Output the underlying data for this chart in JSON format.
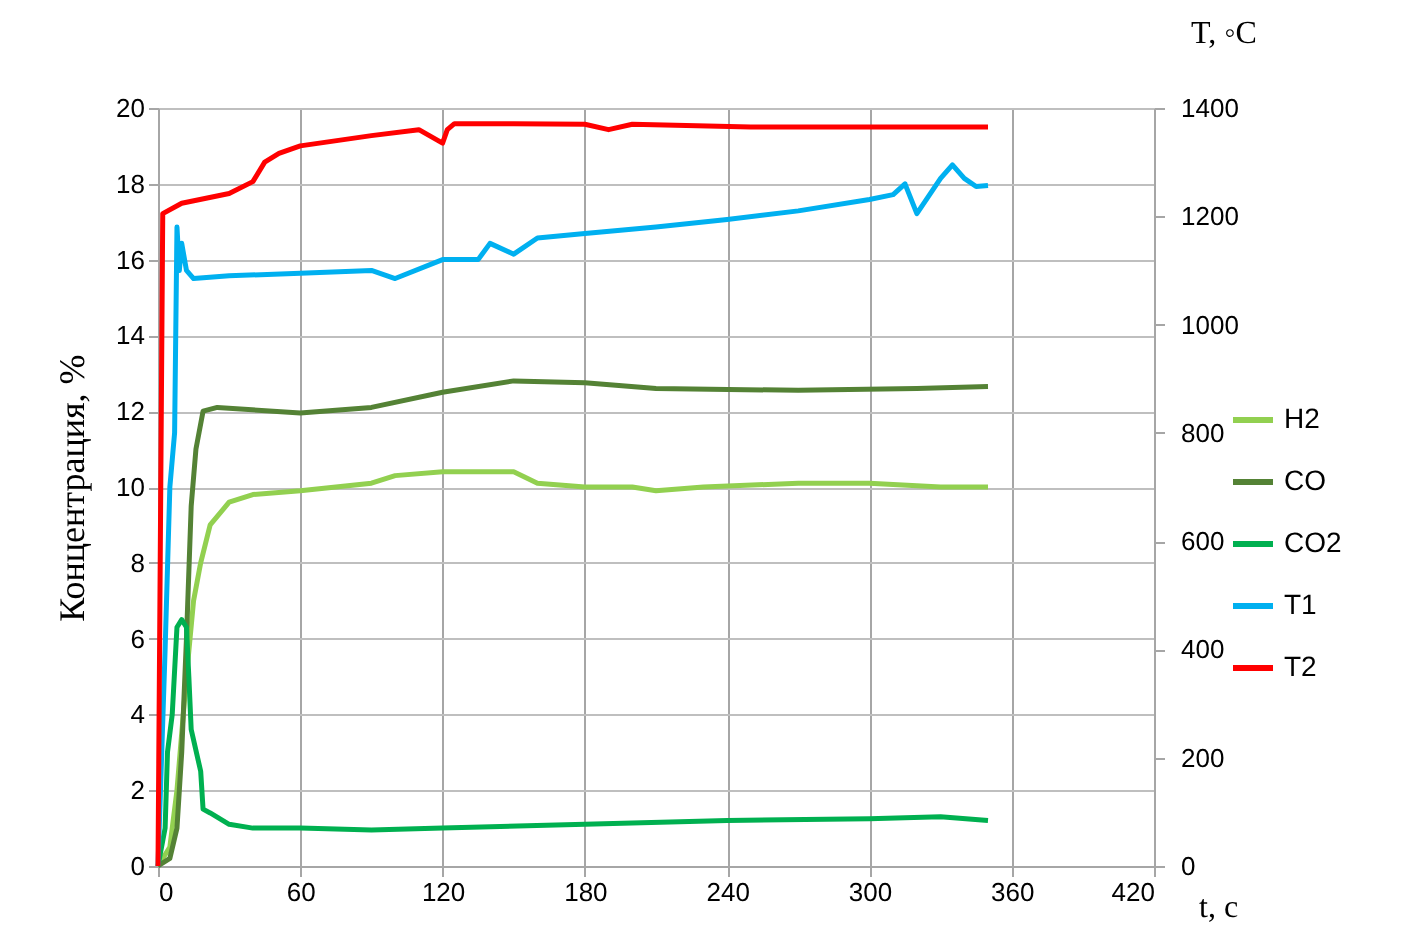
{
  "chart_data": {
    "type": "line",
    "xlabel": "t, c",
    "ylabel": "Концентрация, %",
    "y2label": "T, ◦C",
    "xlim": [
      0,
      420
    ],
    "xticks": [
      0,
      60,
      120,
      180,
      240,
      300,
      360,
      420
    ],
    "ylim": [
      0,
      20
    ],
    "yticks": [
      0,
      2,
      4,
      6,
      8,
      10,
      12,
      14,
      16,
      18,
      20
    ],
    "y2lim": [
      0,
      1400
    ],
    "y2ticks": [
      0,
      200,
      400,
      600,
      800,
      1000,
      1200,
      1400
    ],
    "grid": true,
    "legend": "right",
    "marker": "none",
    "line_style": "solid",
    "series": [
      {
        "name": "H2",
        "color": "#92d050",
        "x": [
          0,
          5,
          8,
          12,
          15,
          18,
          22,
          30,
          40,
          60,
          90,
          100,
          120,
          150,
          160,
          180,
          200,
          210,
          230,
          270,
          300,
          330,
          350
        ],
        "values": [
          0,
          0.5,
          2,
          5,
          7,
          8,
          9,
          9.6,
          9.8,
          9.9,
          10.1,
          10.3,
          10.4,
          10.4,
          10.1,
          10.0,
          10.0,
          9.9,
          10.0,
          10.1,
          10.1,
          10.0,
          10.0
        ]
      },
      {
        "name": "CO",
        "color": "#548235",
        "x": [
          0,
          5,
          8,
          10,
          12,
          14,
          16,
          19,
          25,
          60,
          90,
          120,
          150,
          180,
          210,
          270,
          320,
          350
        ],
        "values": [
          0,
          0.2,
          1,
          3,
          6,
          9.5,
          11,
          12,
          12.1,
          11.95,
          12.1,
          12.5,
          12.8,
          12.75,
          12.6,
          12.55,
          12.6,
          12.65
        ]
      },
      {
        "name": "CO2",
        "color": "#00b050",
        "x": [
          0,
          3,
          4,
          6,
          8,
          10,
          12,
          13,
          14,
          18,
          19,
          22,
          30,
          40,
          60,
          90,
          120,
          180,
          240,
          300,
          330,
          350
        ],
        "values": [
          0,
          1,
          3,
          4,
          6.3,
          6.5,
          6.3,
          5,
          3.6,
          2.5,
          1.5,
          1.4,
          1.1,
          1.0,
          1.0,
          0.95,
          1.0,
          1.1,
          1.2,
          1.25,
          1.3,
          1.2
        ]
      },
      {
        "name": "T1",
        "color": "#00b0f0",
        "axis": "y2",
        "x": [
          0,
          3,
          5,
          7,
          8,
          9,
          10,
          12,
          15,
          30,
          60,
          90,
          100,
          120,
          135,
          140,
          150,
          160,
          180,
          210,
          240,
          270,
          300,
          310,
          315,
          320,
          330,
          335,
          340,
          345,
          350
        ],
        "values": [
          0,
          400,
          700,
          800,
          1180,
          1100,
          1150,
          1100,
          1085,
          1090,
          1095,
          1100,
          1085,
          1120,
          1120,
          1150,
          1130,
          1160,
          1168,
          1180,
          1194,
          1210,
          1231,
          1240,
          1260,
          1205,
          1270,
          1295,
          1270,
          1255,
          1257
        ]
      },
      {
        "name": "T2",
        "color": "#ff0000",
        "axis": "y2",
        "x": [
          0,
          2,
          10,
          30,
          40,
          45,
          51,
          60,
          90,
          110,
          120,
          122,
          125,
          150,
          180,
          190,
          200,
          250,
          300,
          350
        ],
        "values": [
          0,
          1205,
          1224,
          1242,
          1264,
          1300,
          1316,
          1330,
          1349,
          1360,
          1335,
          1360,
          1371,
          1371,
          1370,
          1360,
          1370,
          1365,
          1365,
          1365
        ]
      }
    ]
  }
}
